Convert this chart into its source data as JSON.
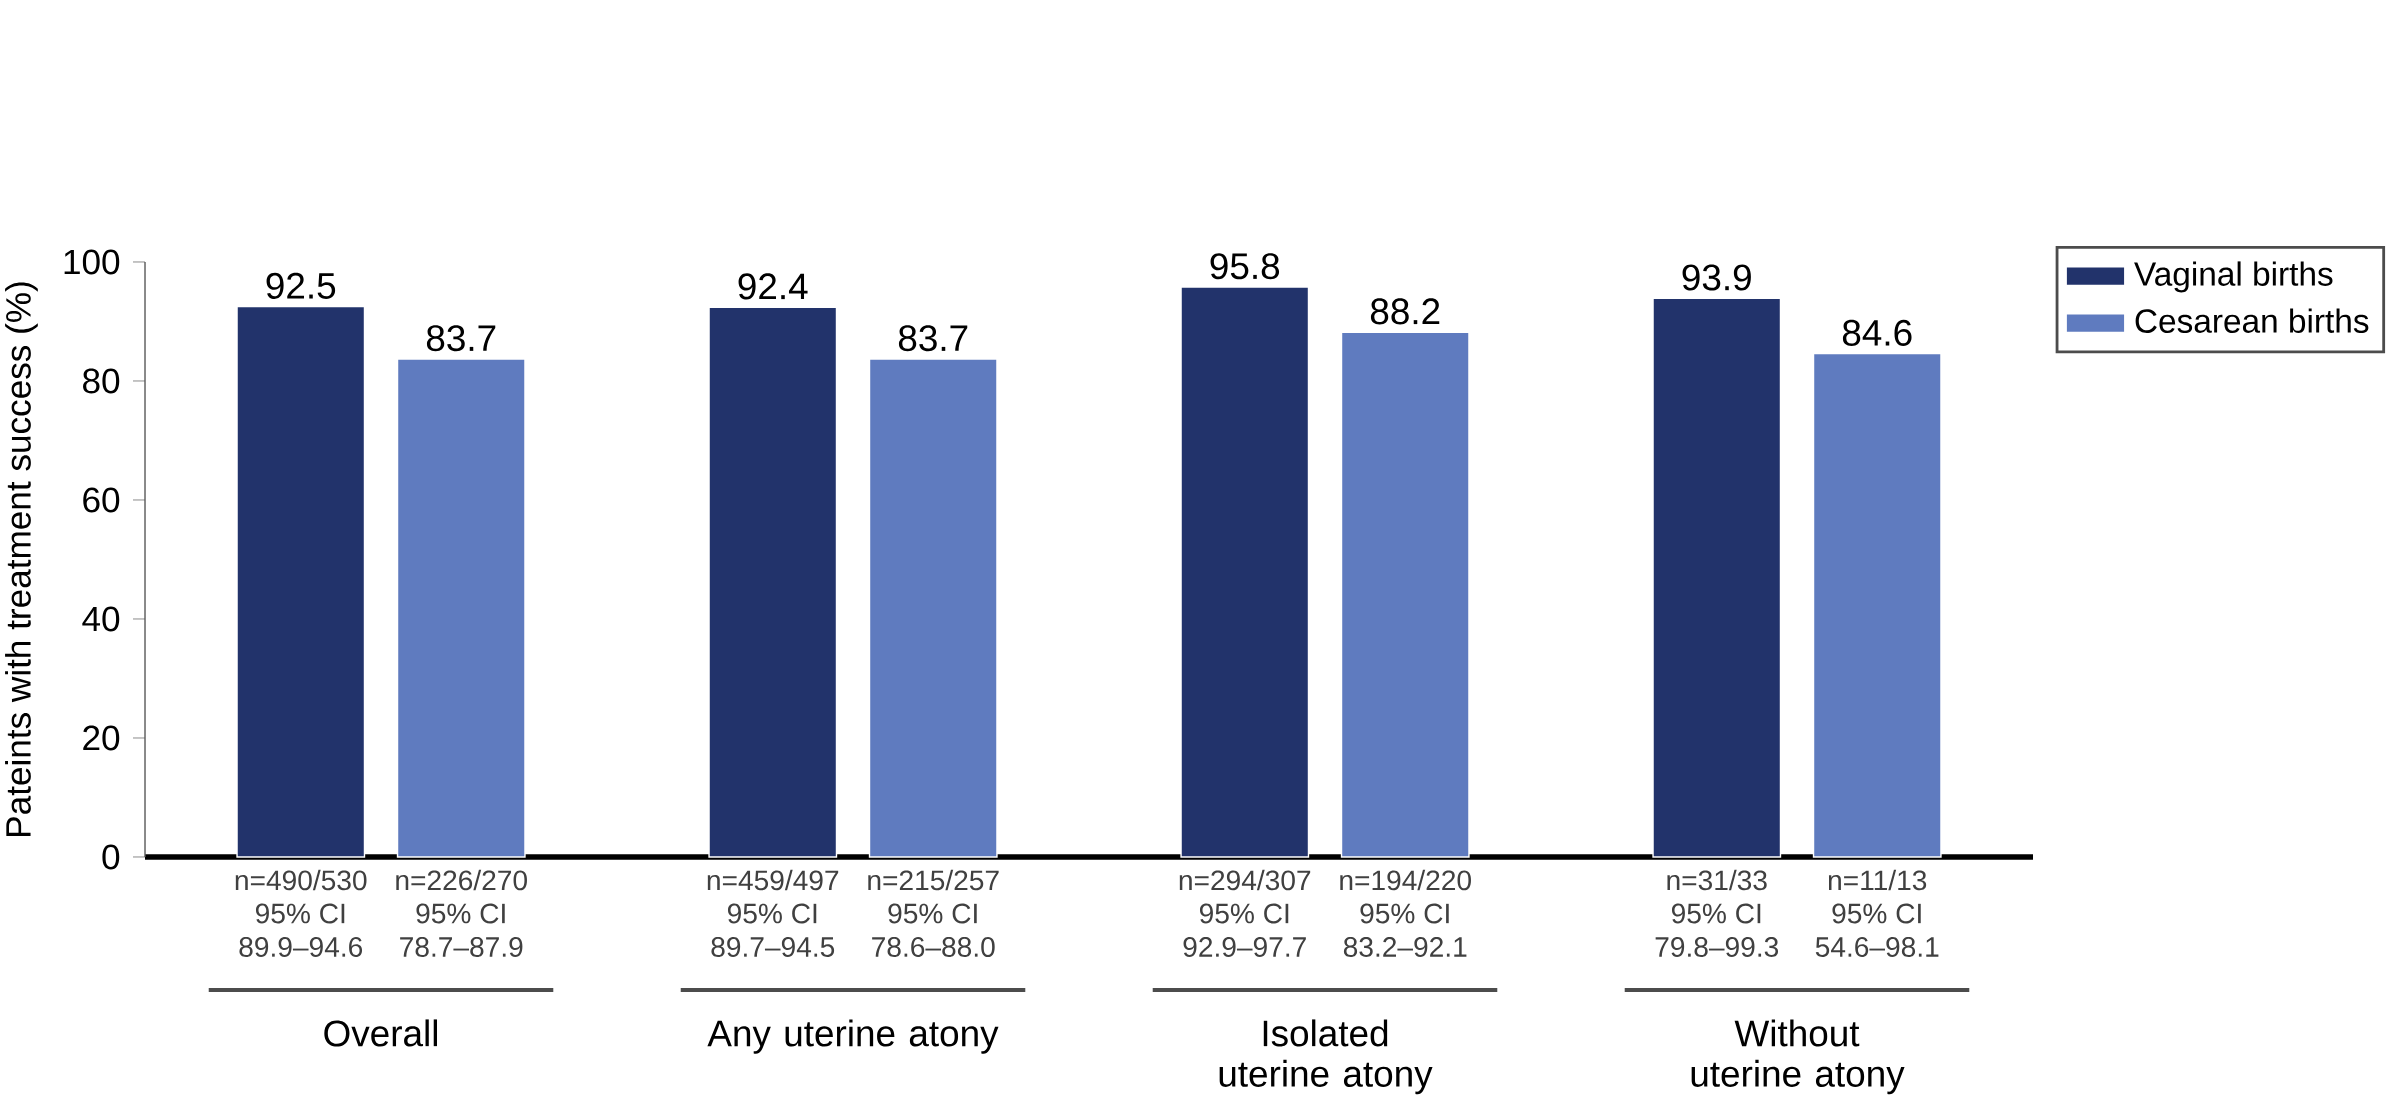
{
  "chart_data": {
    "type": "bar",
    "ylabel": "Pateints with treatment success (%)",
    "categories": [
      "Overall",
      "Any uterine atony",
      "Isolated uterine atony",
      "Without uterine atony"
    ],
    "series": [
      {
        "name": "Vaginal births",
        "color": "#22336b",
        "values": [
          92.5,
          92.4,
          95.8,
          93.9
        ]
      },
      {
        "name": "Cesarean births",
        "color": "#5f7bbf",
        "values": [
          83.7,
          83.7,
          88.2,
          84.6
        ]
      }
    ],
    "ylim": [
      0,
      100
    ],
    "yticks": [
      0,
      20,
      40,
      60,
      80,
      100
    ],
    "data_labels": true,
    "legend": "top right",
    "grid": false,
    "annotations": [
      "n=490/530",
      "95% CI",
      "89.9–94.6",
      "n=226/270",
      "95% CI",
      "78.7–87.9",
      "n=459/497",
      "95% CI",
      "89.7–94.5",
      "n=215/257",
      "95% CI",
      "78.6–88.0",
      "n=294/307",
      "95% CI",
      "92.9–97.7",
      "n=194/220",
      "95% CI",
      "83.2–92.1",
      "n=31/33",
      "95% CI",
      "79.8–99.3",
      "n=11/13",
      "95% CI",
      "54.6–98.1"
    ]
  }
}
